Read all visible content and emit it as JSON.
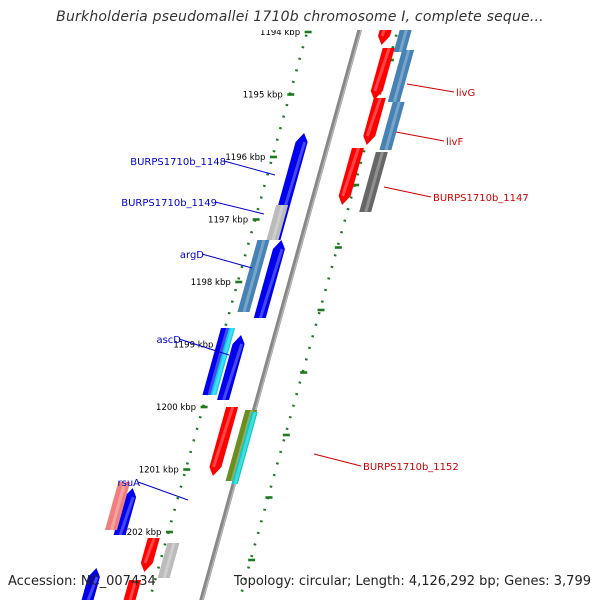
{
  "title": "Burkholderia pseudomallei 1710b chromosome I, complete seque...",
  "footer": {
    "accession": "Accession: NC_007434",
    "topology": "Topology: circular; Length: 4,126,292 bp; Genes: 3,799"
  },
  "colors": {
    "forward_label": "#0000cc",
    "reverse_label": "#cc0000",
    "ruler": "#1e7a1e",
    "backbone": "#888888"
  },
  "ruler_labels": [
    {
      "text": "1194 kbp",
      "kbp": 1194
    },
    {
      "text": "1195 kbp",
      "kbp": 1195
    },
    {
      "text": "1196 kbp",
      "kbp": 1196
    },
    {
      "text": "1197 kbp",
      "kbp": 1197
    },
    {
      "text": "1198 kbp",
      "kbp": 1198
    },
    {
      "text": "1199 kbp",
      "kbp": 1199
    },
    {
      "text": "1200 kbp",
      "kbp": 1200
    },
    {
      "text": "1201 kbp",
      "kbp": 1201
    },
    {
      "text": "1202 kbp",
      "kbp": 1202
    }
  ],
  "gene_labels_left": [
    {
      "text": "BURPS1710b_1148"
    },
    {
      "text": "BURPS1710b_1149"
    },
    {
      "text": "argD"
    },
    {
      "text": "ascD"
    },
    {
      "text": "rsuA"
    }
  ],
  "gene_labels_right": [
    {
      "text": "livG"
    },
    {
      "text": "livF"
    },
    {
      "text": "BURPS1710b_1147"
    },
    {
      "text": "BURPS1710b_1152"
    }
  ]
}
